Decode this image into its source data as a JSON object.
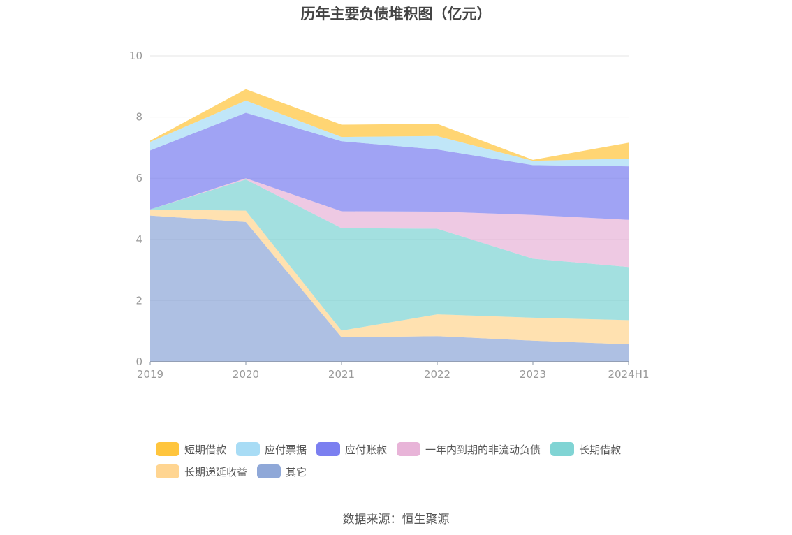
{
  "chart_data": {
    "type": "area",
    "stacked": true,
    "title": "历年主要负债堆积图（亿元）",
    "categories": [
      "2019",
      "2020",
      "2021",
      "2022",
      "2023",
      "2024H1"
    ],
    "ylim": [
      0,
      10
    ],
    "yticks": [
      0,
      2,
      4,
      6,
      8,
      10
    ],
    "grid": true,
    "legend_position": "bottom",
    "series": [
      {
        "name": "其它",
        "color": "#8fa8d8",
        "values": [
          4.78,
          4.57,
          0.8,
          0.84,
          0.69,
          0.57
        ]
      },
      {
        "name": "长期递延收益",
        "color": "#ffd591",
        "values": [
          0.2,
          0.37,
          0.22,
          0.71,
          0.75,
          0.79
        ]
      },
      {
        "name": "长期借款",
        "color": "#80d4d4",
        "values": [
          0.0,
          1.02,
          3.35,
          2.8,
          1.93,
          1.74
        ]
      },
      {
        "name": "一年内到期的非流动负债",
        "color": "#e8b4d8",
        "values": [
          0.0,
          0.04,
          0.55,
          0.56,
          1.43,
          1.54
        ]
      },
      {
        "name": "应付账款",
        "color": "#7b7ff0",
        "values": [
          1.93,
          2.14,
          2.29,
          2.03,
          1.63,
          1.75
        ]
      },
      {
        "name": "应付票据",
        "color": "#a8dcf5",
        "values": [
          0.28,
          0.4,
          0.14,
          0.44,
          0.14,
          0.25
        ]
      },
      {
        "name": "短期借款",
        "color": "#ffc53d",
        "values": [
          0.04,
          0.37,
          0.4,
          0.4,
          0.03,
          0.52
        ]
      }
    ],
    "legend_order": [
      "短期借款",
      "应付票据",
      "应付账款",
      "一年内到期的非流动负债",
      "长期借款",
      "长期递延收益",
      "其它"
    ]
  },
  "source_text": "数据来源：恒生聚源"
}
